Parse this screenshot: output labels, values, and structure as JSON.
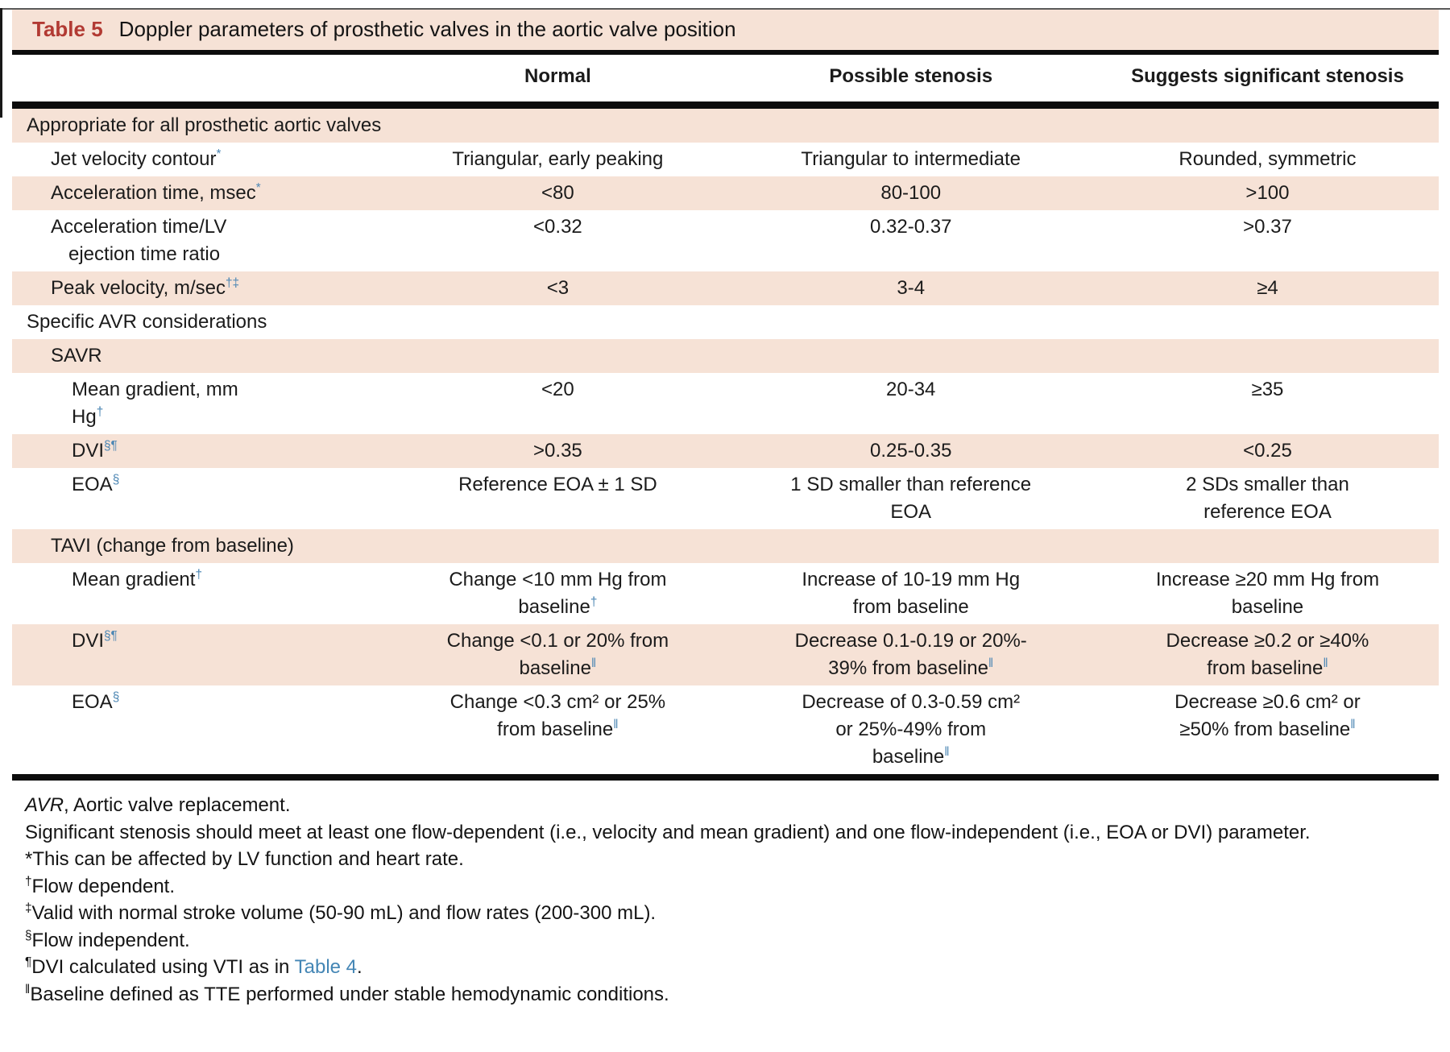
{
  "title": {
    "label": "Table 5",
    "text": "Doppler parameters of prosthetic valves in the aortic valve position"
  },
  "accent_colors": {
    "band_peach": "#f6e2d6",
    "title_red": "#b23a33",
    "superscript_blue": "#4d87b4",
    "link_blue": "#4486b5"
  },
  "table": {
    "columns": [
      "",
      "Normal",
      "Possible stenosis",
      "Suggests significant stenosis"
    ],
    "rows": [
      {
        "kind": "section",
        "level": 0,
        "shaded": true,
        "label": "Appropriate for all prosthetic aortic valves",
        "cells": [
          "",
          "",
          ""
        ]
      },
      {
        "kind": "param",
        "level": 1,
        "shaded": false,
        "label": "Jet velocity contour^*^",
        "cells": [
          "Triangular, early peaking",
          "Triangular to intermediate",
          "Rounded, symmetric"
        ]
      },
      {
        "kind": "param",
        "level": 1,
        "shaded": true,
        "label": "Acceleration time, msec^*^",
        "cells": [
          "<80",
          "80-100",
          ">100"
        ]
      },
      {
        "kind": "param",
        "level": 1,
        "shaded": false,
        "label": "Acceleration time/LV\nejection time ratio",
        "cells": [
          "<0.32",
          "0.32-0.37",
          ">0.37"
        ]
      },
      {
        "kind": "param",
        "level": 1,
        "shaded": true,
        "label": "Peak velocity, m/sec^†‡^",
        "cells": [
          "<3",
          "3-4",
          "≥4"
        ]
      },
      {
        "kind": "section",
        "level": 0,
        "shaded": false,
        "label": "Specific AVR considerations",
        "cells": [
          "",
          "",
          ""
        ]
      },
      {
        "kind": "section",
        "level": 1,
        "shaded": true,
        "label": "SAVR",
        "cells": [
          "",
          "",
          ""
        ]
      },
      {
        "kind": "param",
        "level": 2,
        "shaded": false,
        "label": "Mean gradient, mm\nHg^†^",
        "cells": [
          "<20",
          "20-34",
          "≥35"
        ]
      },
      {
        "kind": "param",
        "level": 2,
        "shaded": true,
        "label": "DVI^§¶^",
        "cells": [
          ">0.35",
          "0.25-0.35",
          "<0.25"
        ]
      },
      {
        "kind": "param",
        "level": 2,
        "shaded": false,
        "label": "EOA^§^",
        "cells": [
          "Reference EOA ± 1 SD",
          "1 SD smaller than reference\nEOA",
          "2 SDs smaller than\nreference EOA"
        ]
      },
      {
        "kind": "section",
        "level": 1,
        "shaded": true,
        "label": "TAVI (change from baseline)",
        "cells": [
          "",
          "",
          ""
        ]
      },
      {
        "kind": "param",
        "level": 2,
        "shaded": false,
        "label": "Mean gradient^†^",
        "cells": [
          "Change <10 mm Hg from\nbaseline^†^",
          "Increase of 10-19 mm Hg\nfrom baseline",
          "Increase ≥20 mm Hg from\nbaseline"
        ]
      },
      {
        "kind": "param",
        "level": 2,
        "shaded": true,
        "label": "DVI^§¶^",
        "cells": [
          "Change <0.1 or 20% from\nbaseline^‖^",
          "Decrease 0.1-0.19 or 20%-\n39% from baseline^‖^",
          "Decrease ≥0.2 or ≥40%\nfrom baseline^‖^"
        ]
      },
      {
        "kind": "param",
        "level": 2,
        "shaded": false,
        "label": "EOA^§^",
        "cells": [
          "Change <0.3 cm² or 25%\nfrom baseline^‖^",
          "Decrease of 0.3-0.59 cm²\nor 25%-49% from\nbaseline^‖^",
          "Decrease ≥0.6 cm² or\n≥50% from baseline^‖^"
        ]
      }
    ]
  },
  "footnotes": [
    {
      "rich": "//AVR//, Aortic valve replacement.",
      "justify": false
    },
    {
      "rich": "Significant stenosis should meet at least one flow-dependent (i.e., velocity and mean gradient) and one flow-independent (i.e., EOA or DVI) parameter.",
      "justify": true
    },
    {
      "rich": "*This can be affected by LV function and heart rate.",
      "justify": false
    },
    {
      "rich": "^†^Flow dependent.",
      "justify": false
    },
    {
      "rich": "^‡^Valid with normal stroke volume (50-90 mL) and flow rates (200-300 mL).",
      "justify": false
    },
    {
      "rich": "^§^Flow independent.",
      "justify": false
    },
    {
      "rich": "^¶^DVI calculated using VTI as in [[Table 4]].",
      "justify": false
    },
    {
      "rich": "^‖^Baseline defined as TTE performed under stable hemodynamic conditions.",
      "justify": false
    }
  ]
}
